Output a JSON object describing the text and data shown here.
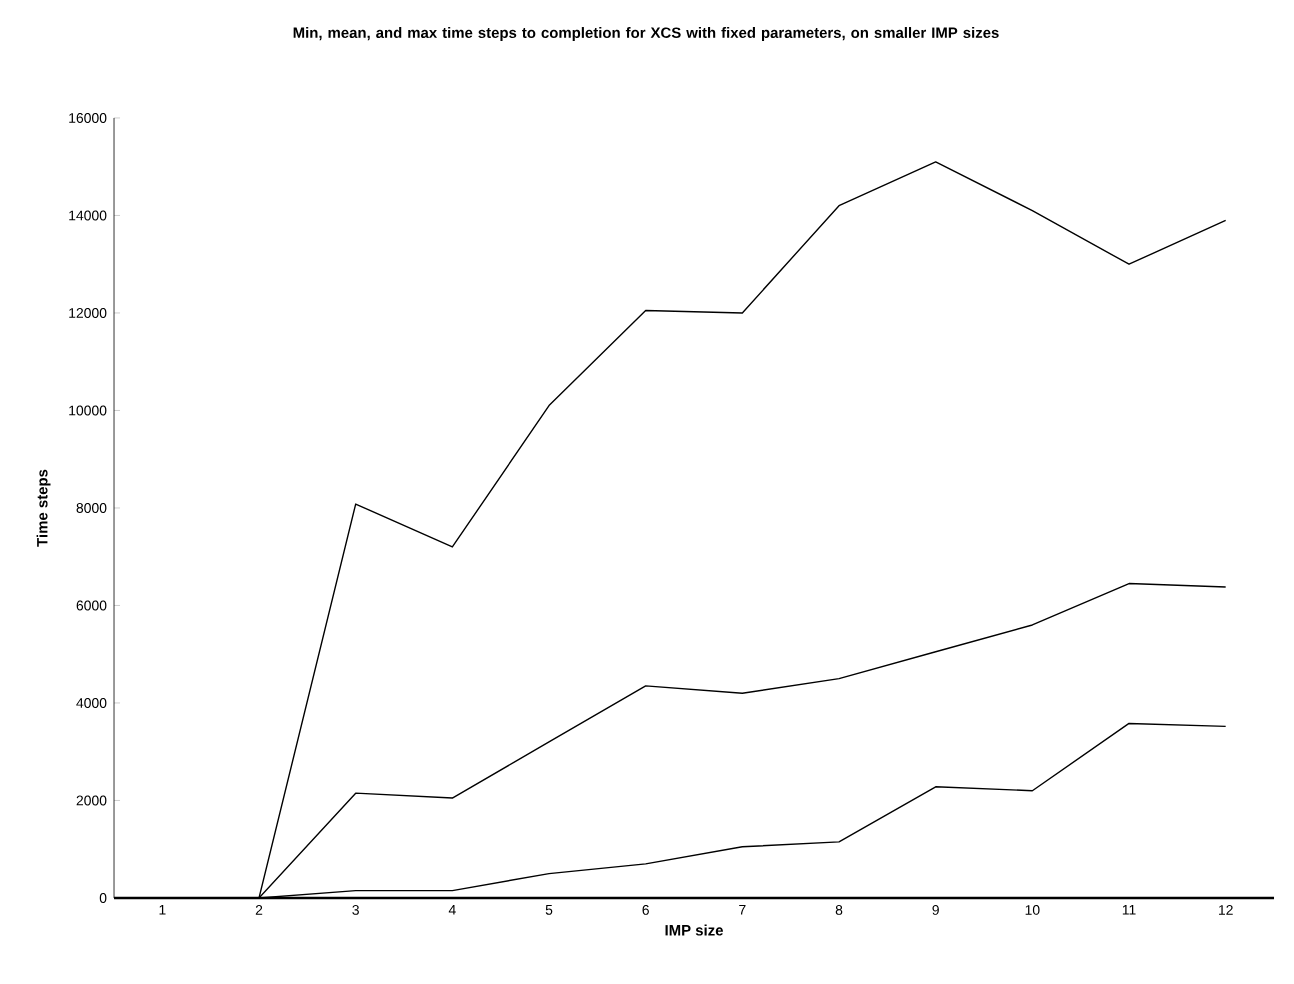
{
  "chart_data": {
    "type": "line",
    "title": "Min, mean, and max time steps to completion for XCS with fixed parameters, on smaller IMP sizes",
    "xlabel": "IMP size",
    "ylabel": "Time steps",
    "categories": [
      "1",
      "2",
      "3",
      "4",
      "5",
      "6",
      "7",
      "8",
      "9",
      "10",
      "11",
      "12"
    ],
    "series": [
      {
        "color": "#000000",
        "values": [
          0,
          0,
          8080,
          7200,
          10100,
          12050,
          12000,
          14200,
          15100,
          14100,
          13000,
          13900
        ]
      },
      {
        "color": "#000000",
        "values": [
          0,
          0,
          2150,
          2050,
          3200,
          4350,
          4200,
          4500,
          5050,
          5600,
          6450,
          6380
        ]
      },
      {
        "color": "#000000",
        "values": [
          0,
          0,
          150,
          150,
          500,
          700,
          1050,
          1150,
          2280,
          2200,
          3580,
          3520
        ]
      }
    ],
    "ylim": [
      0,
      16000
    ],
    "yticks": [
      0,
      2000,
      4000,
      6000,
      8000,
      10000,
      12000,
      14000,
      16000
    ],
    "grid": false,
    "legend": false,
    "marker": "none",
    "line_style": "solid"
  }
}
